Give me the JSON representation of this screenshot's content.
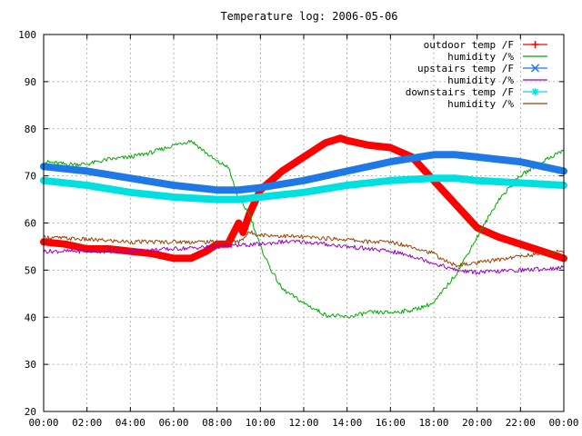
{
  "chart_data": {
    "type": "line",
    "title": "Temperature log: 2006-05-06",
    "xlabel": "",
    "ylabel": "",
    "ylim": [
      20,
      100
    ],
    "yticks": [
      20,
      30,
      40,
      50,
      60,
      70,
      80,
      90,
      100
    ],
    "xlim": [
      0,
      24
    ],
    "xticks": [
      "00:00",
      "02:00",
      "04:00",
      "06:00",
      "08:00",
      "10:00",
      "12:00",
      "14:00",
      "16:00",
      "18:00",
      "20:00",
      "22:00",
      "00:00"
    ],
    "grid": true,
    "legend_position": "top-right",
    "series": [
      {
        "name": "outdoor temp /F",
        "color": "#ff0000",
        "marker": "plus",
        "width": "thick",
        "x": [
          0,
          1,
          2,
          3,
          4,
          5,
          6,
          6.8,
          7.5,
          8,
          8.5,
          9,
          9.2,
          9.5,
          10,
          11,
          12,
          13,
          13.7,
          14,
          15,
          16,
          17,
          18,
          19,
          20,
          21,
          22,
          23,
          24
        ],
        "y": [
          56,
          55.5,
          54.5,
          54.5,
          54,
          53.5,
          52.5,
          52.5,
          54,
          55.5,
          55.5,
          60,
          58,
          62,
          67,
          71,
          74,
          77,
          78,
          77.5,
          76.5,
          76,
          74,
          69,
          64,
          59,
          57,
          55.5,
          54,
          52.5
        ]
      },
      {
        "name": "humidity /%",
        "color": "#00aa00",
        "marker": "",
        "width": "thin",
        "x": [
          0,
          1,
          2,
          3,
          4,
          5,
          6,
          6.8,
          7.2,
          8,
          8.5,
          9,
          9.5,
          10,
          10.5,
          11,
          12,
          13,
          14,
          15,
          16,
          17,
          18,
          19,
          20,
          21,
          22,
          23,
          24
        ],
        "y": [
          73,
          72.5,
          72.5,
          73.5,
          74,
          75,
          76.5,
          77.5,
          76,
          73,
          72,
          65,
          62,
          55,
          50,
          46,
          43,
          40.5,
          40,
          41,
          41,
          41.5,
          43,
          49,
          57,
          65,
          70,
          73,
          75.5
        ]
      },
      {
        "name": "upstairs temp /F",
        "color": "#1e78e6",
        "marker": "cross",
        "width": "thick",
        "x": [
          0,
          2,
          4,
          6,
          8,
          9,
          10,
          12,
          14,
          16,
          18,
          19,
          20,
          22,
          24
        ],
        "y": [
          72,
          71,
          69.5,
          68,
          67,
          67,
          67.5,
          69,
          71,
          73,
          74.5,
          74.5,
          74,
          73,
          71
        ]
      },
      {
        "name": "humidity /%",
        "color": "#9900cc",
        "marker": "",
        "width": "thin",
        "x": [
          0,
          2,
          4,
          6,
          8,
          10,
          11,
          12,
          13,
          14,
          16,
          17,
          18,
          19,
          20,
          22,
          24
        ],
        "y": [
          54,
          54,
          54,
          54.5,
          55,
          55.5,
          56,
          56,
          55.5,
          55,
          54,
          53,
          51.5,
          50,
          49.5,
          50,
          50.5
        ]
      },
      {
        "name": "downstairs temp /F",
        "color": "#00e0e0",
        "marker": "star",
        "width": "thick",
        "x": [
          0,
          2,
          4,
          6,
          8,
          9,
          10,
          12,
          14,
          16,
          18,
          19,
          20,
          22,
          24
        ],
        "y": [
          69,
          68,
          66.5,
          65.5,
          65,
          65,
          65.5,
          66.5,
          68,
          69,
          69.5,
          69.5,
          69,
          68.5,
          68
        ]
      },
      {
        "name": "humidity /%",
        "color": "#a04000",
        "marker": "",
        "width": "thin",
        "x": [
          0,
          2,
          4,
          6,
          8,
          9,
          9.5,
          10,
          12,
          14,
          15,
          16,
          17,
          18,
          18.5,
          19,
          20,
          22,
          24
        ],
        "y": [
          57,
          56.5,
          56,
          56,
          56,
          56,
          58,
          57.5,
          57,
          56.5,
          56,
          56,
          55,
          53.5,
          52,
          51,
          51.5,
          53,
          54
        ]
      }
    ]
  }
}
